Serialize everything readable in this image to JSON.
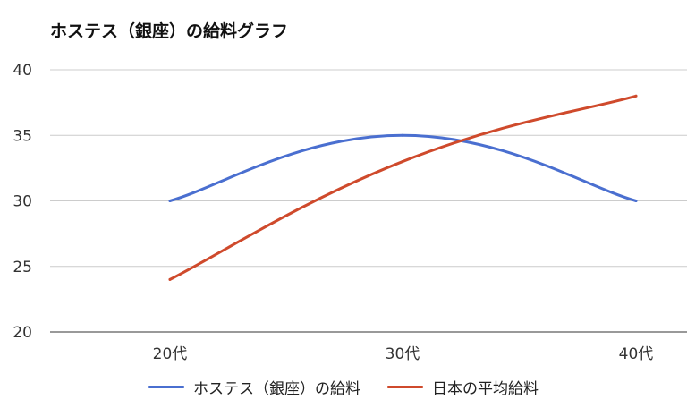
{
  "chart_data": {
    "type": "line",
    "title": "ホステス（銀座）の給料グラフ",
    "categories": [
      "20代",
      "30代",
      "40代"
    ],
    "series": [
      {
        "name": "ホステス（銀座）の給料",
        "values": [
          30,
          35,
          30
        ],
        "color": "#4a6fd0"
      },
      {
        "name": "日本の平均給料",
        "values": [
          24,
          33,
          38
        ],
        "color": "#cf4a2c"
      }
    ],
    "ylim": [
      20,
      40
    ],
    "yticks": [
      20,
      25,
      30,
      35,
      40
    ],
    "grid": true,
    "smooth": true,
    "legend": "bottom"
  }
}
